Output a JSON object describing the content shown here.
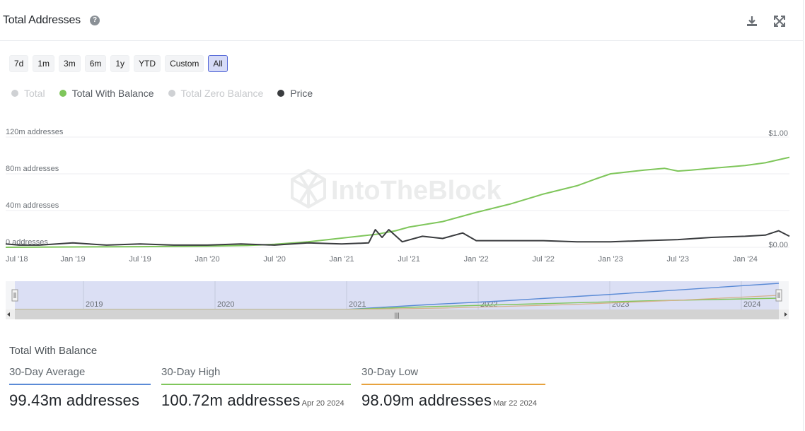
{
  "header": {
    "title": "Total Addresses",
    "help_icon": "question-circle-icon",
    "download_icon": "download-icon",
    "expand_icon": "fullscreen-icon"
  },
  "range_buttons": [
    "7d",
    "1m",
    "3m",
    "6m",
    "1y",
    "YTD",
    "Custom",
    "All"
  ],
  "active_range": "All",
  "legend": [
    {
      "label": "Total",
      "color": "#cfd1d4",
      "state": "off"
    },
    {
      "label": "Total With Balance",
      "color": "#7fc65b",
      "state": "on"
    },
    {
      "label": "Total Zero Balance",
      "color": "#cfd1d4",
      "state": "off"
    },
    {
      "label": "Price",
      "color": "#3a3c3f",
      "state": "on"
    }
  ],
  "watermark": "IntoTheBlock",
  "chart_data": {
    "type": "line",
    "x_tick_labels": [
      "Jul '18",
      "Jan '19",
      "Jul '19",
      "Jan '20",
      "Jul '20",
      "Jan '21",
      "Jul '21",
      "Jan '22",
      "Jul '22",
      "Jan '23",
      "Jul '23",
      "Jan '24"
    ],
    "y_left_tick_labels": [
      "0 addresses",
      "40m addresses",
      "80m addresses",
      "120m addresses"
    ],
    "y_left_ticks": [
      0,
      40,
      80,
      120
    ],
    "y_left_unit": "m addresses",
    "y_left_range": [
      0,
      120
    ],
    "y_right_tick_labels": [
      "$0.00",
      "$1.00"
    ],
    "y_right_range": [
      0,
      1
    ],
    "x_range": [
      2018.5,
      2024.33
    ],
    "series": [
      {
        "name": "Total With Balance",
        "axis": "left",
        "color": "#7fc65b",
        "x": [
          2018.5,
          2019.0,
          2019.5,
          2020.0,
          2020.3,
          2020.5,
          2020.75,
          2021.0,
          2021.25,
          2021.4,
          2021.5,
          2021.75,
          2022.0,
          2022.25,
          2022.5,
          2022.75,
          2022.9,
          2023.0,
          2023.25,
          2023.4,
          2023.5,
          2023.6,
          2023.75,
          2024.0,
          2024.15,
          2024.33
        ],
        "values": [
          0,
          0.4,
          0.7,
          1.2,
          2.0,
          3.2,
          6.0,
          10.0,
          14.0,
          18.0,
          22.0,
          28.0,
          38.0,
          47.0,
          58.0,
          67.0,
          75.0,
          80.0,
          84.0,
          86.0,
          83.0,
          84.0,
          86.0,
          89.0,
          92.0,
          98.0
        ]
      },
      {
        "name": "Price",
        "axis": "right",
        "color": "#3a3c3f",
        "x": [
          2018.5,
          2018.6,
          2018.75,
          2019.0,
          2019.25,
          2019.5,
          2019.75,
          2020.0,
          2020.25,
          2020.5,
          2020.75,
          2021.0,
          2021.2,
          2021.25,
          2021.3,
          2021.35,
          2021.45,
          2021.6,
          2021.75,
          2021.9,
          2022.0,
          2022.25,
          2022.5,
          2022.75,
          2023.0,
          2023.25,
          2023.5,
          2023.75,
          2024.0,
          2024.15,
          2024.25,
          2024.33
        ],
        "values": [
          0.03,
          0.02,
          0.02,
          0.04,
          0.02,
          0.03,
          0.02,
          0.02,
          0.03,
          0.02,
          0.04,
          0.03,
          0.04,
          0.16,
          0.09,
          0.16,
          0.05,
          0.1,
          0.08,
          0.13,
          0.06,
          0.06,
          0.06,
          0.05,
          0.05,
          0.06,
          0.07,
          0.09,
          0.1,
          0.11,
          0.15,
          0.1
        ]
      }
    ]
  },
  "navigator": {
    "year_labels": [
      "2019",
      "2020",
      "2021",
      "2022",
      "2023",
      "2024"
    ],
    "scroll_grip": "|||"
  },
  "stats": {
    "title": "Total With Balance",
    "items": [
      {
        "label": "30-Day Average",
        "value": "99.43m addresses",
        "date": "",
        "color": "#5b8bd6"
      },
      {
        "label": "30-Day High",
        "value": "100.72m addresses",
        "date": "Apr 20 2024",
        "color": "#7fc65b"
      },
      {
        "label": "30-Day Low",
        "value": "98.09m addresses",
        "date": "Mar 22 2024",
        "color": "#e7a23e"
      }
    ]
  }
}
